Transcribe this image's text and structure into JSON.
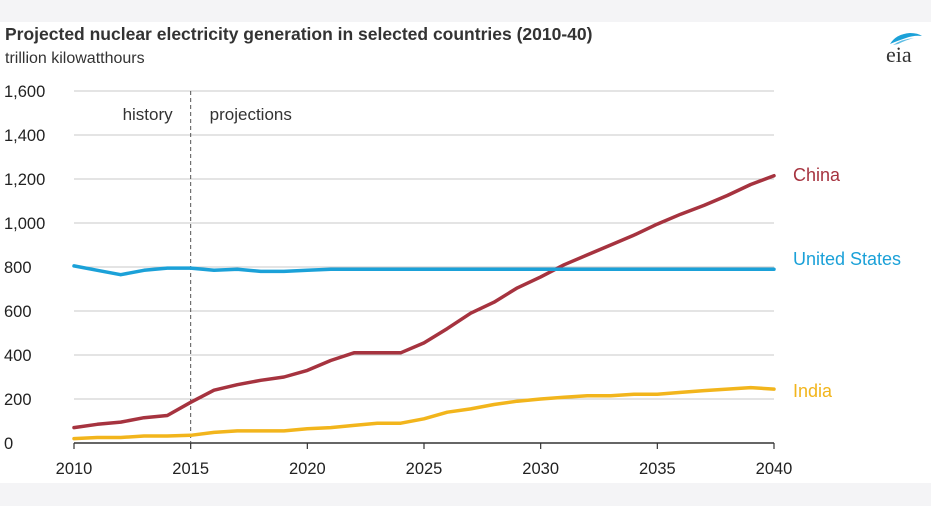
{
  "header": {
    "title": "Projected nuclear electricity generation in selected countries (2010-40)",
    "subtitle": "trillion kilowatthours",
    "logo_text": "eia"
  },
  "colors": {
    "china": "#a6333f",
    "us": "#1ba1d8",
    "india": "#f2b51c",
    "grid": "#c8c8c8",
    "axis": "#333333"
  },
  "chart_data": {
    "type": "line",
    "title": "Projected nuclear electricity generation in selected countries (2010-40)",
    "ylabel": "trillion kilowatthours",
    "xlabel": "",
    "x": [
      2010,
      2011,
      2012,
      2013,
      2014,
      2015,
      2016,
      2017,
      2018,
      2019,
      2020,
      2021,
      2022,
      2023,
      2024,
      2025,
      2026,
      2027,
      2028,
      2029,
      2030,
      2031,
      2032,
      2033,
      2034,
      2035,
      2036,
      2037,
      2038,
      2039,
      2040
    ],
    "xlim": [
      2010,
      2040
    ],
    "ylim": [
      0,
      1600
    ],
    "x_ticks": [
      "2010",
      "2015",
      "2020",
      "2025",
      "2030",
      "2035",
      "2040"
    ],
    "y_ticks": [
      "0",
      "200",
      "400",
      "600",
      "800",
      "1,000",
      "1,200",
      "1,400",
      "1,600"
    ],
    "grid": "horizontal",
    "annotations": {
      "history": "history",
      "projections": "projections",
      "divider_x": 2015
    },
    "series": [
      {
        "name": "China",
        "color": "#a6333f",
        "values": [
          70,
          85,
          95,
          115,
          125,
          185,
          240,
          265,
          285,
          300,
          330,
          375,
          410,
          410,
          410,
          455,
          520,
          590,
          640,
          705,
          755,
          810,
          855,
          900,
          945,
          995,
          1040,
          1080,
          1125,
          1175,
          1215
        ]
      },
      {
        "name": "United States",
        "color": "#1ba1d8",
        "values": [
          805,
          785,
          765,
          785,
          795,
          795,
          785,
          790,
          780,
          780,
          785,
          790,
          790,
          790,
          790,
          790,
          790,
          790,
          790,
          790,
          790,
          790,
          790,
          790,
          790,
          790,
          790,
          790,
          790,
          790,
          790
        ]
      },
      {
        "name": "India",
        "color": "#f2b51c",
        "values": [
          20,
          25,
          25,
          32,
          32,
          35,
          48,
          55,
          55,
          55,
          65,
          70,
          80,
          90,
          90,
          110,
          140,
          155,
          175,
          190,
          200,
          208,
          215,
          215,
          222,
          222,
          230,
          238,
          245,
          252,
          245
        ]
      }
    ]
  }
}
